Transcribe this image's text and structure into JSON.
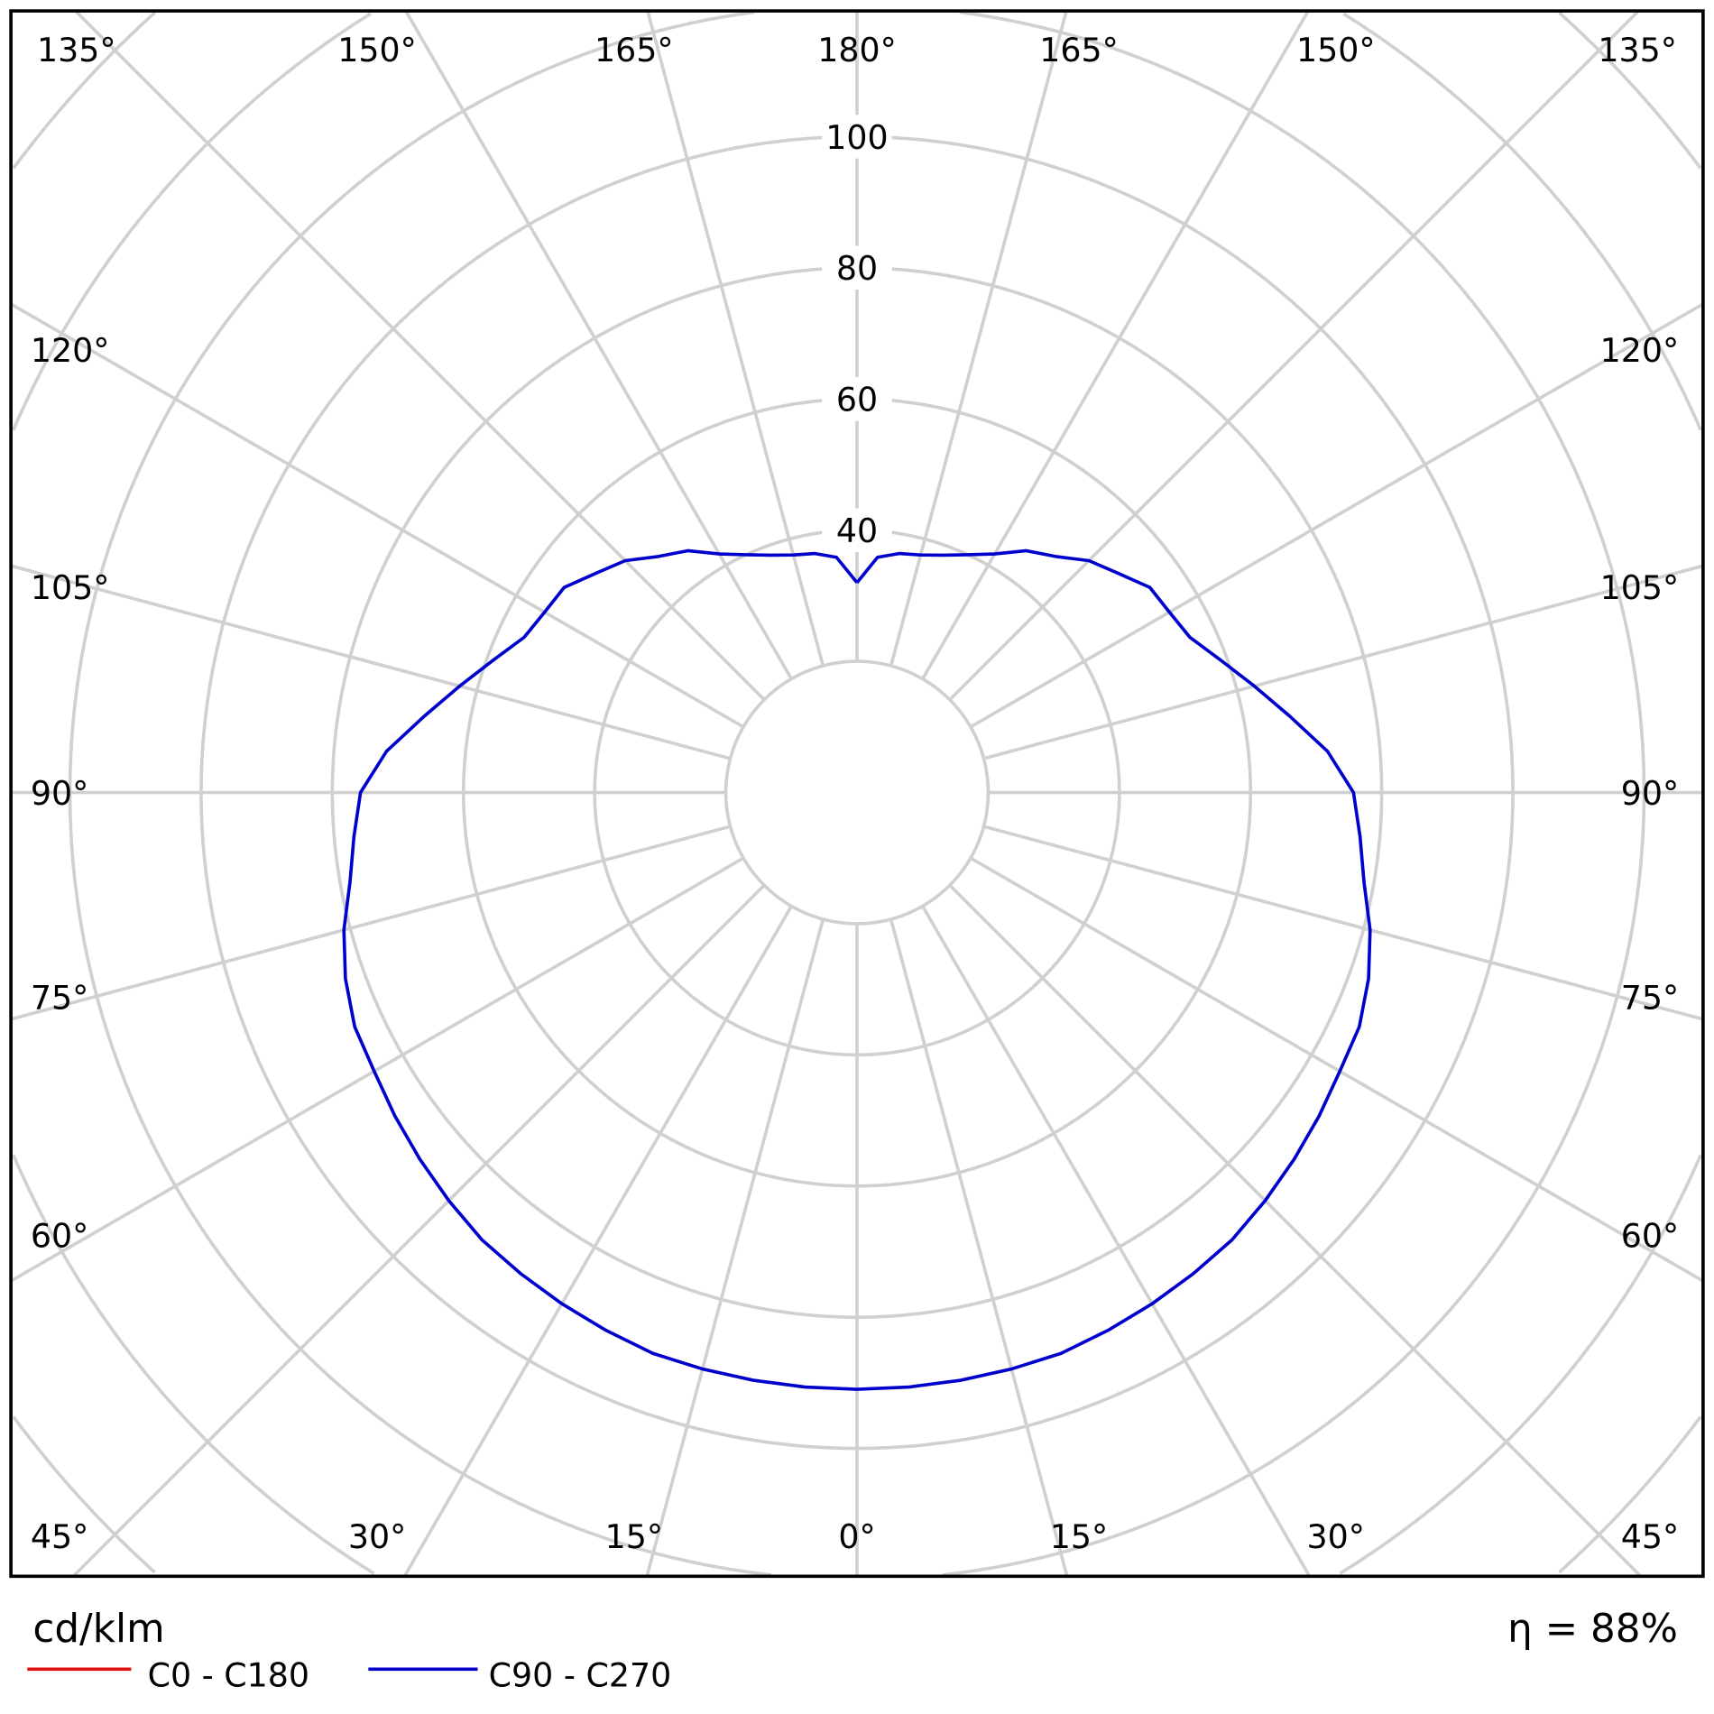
{
  "chart_data": {
    "type": "polar",
    "unit_label": "cd/klm",
    "efficiency_label": "η = 88%",
    "radial_ticks": [
      40,
      60,
      80,
      100
    ],
    "radial_grid_step": 20,
    "angle_grid_step_deg": 15,
    "angle_labels": {
      "top": [
        "135°",
        "150°",
        "165°",
        "180°",
        "165°",
        "150°",
        "135°"
      ],
      "left": [
        "120°",
        "105°",
        "90°",
        "75°",
        "60°",
        "45°"
      ],
      "right": [
        "120°",
        "105°",
        "90°",
        "75°",
        "60°",
        "45°"
      ],
      "bottom": [
        "30°",
        "15°",
        "0°",
        "15°",
        "30°"
      ]
    },
    "grid": true,
    "legend": [
      {
        "name": "C0 - C180",
        "color": "#e01010"
      },
      {
        "name": "C90 - C270",
        "color": "#0000cc"
      }
    ],
    "series": [
      {
        "name": "C90 - C270",
        "color": "#0000cc",
        "symmetric": true,
        "gamma_deg": [
          0,
          5,
          10,
          15,
          20,
          25,
          30,
          35,
          40,
          45,
          50,
          55,
          60,
          65,
          70,
          75,
          80,
          85,
          90,
          95,
          100,
          105,
          110,
          115,
          120,
          125,
          130,
          135,
          140,
          145,
          150,
          155,
          160,
          165,
          170,
          175,
          180
        ],
        "values": [
          91,
          91,
          91,
          91,
          91,
          90.5,
          90,
          89.5,
          89,
          88,
          87,
          86,
          85,
          84.5,
          83,
          81,
          78.5,
          77,
          75.7,
          72,
          67,
          62.7,
          59,
          56,
          55,
          54.5,
          52,
          50,
          47,
          45,
          42,
          40,
          38.5,
          37.5,
          37,
          36,
          32
        ]
      }
    ],
    "grid_color": "#d0d0d0"
  }
}
